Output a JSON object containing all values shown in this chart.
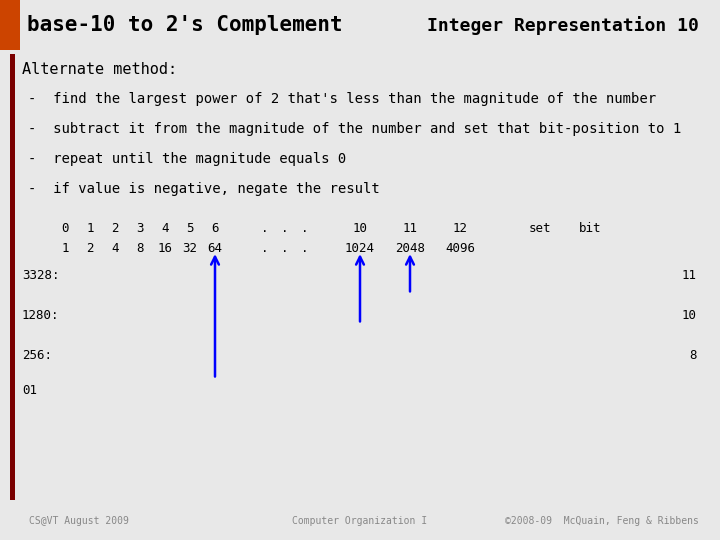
{
  "title_left": "base-10 to 2's Complement",
  "title_right": "Integer Representation 10",
  "bg_color": "#e8e8e8",
  "orange_color": "#cc4400",
  "dark_red_color": "#7a0000",
  "bullet_lines": [
    "find the largest power of 2 that's less than the magnitude of the number",
    "subtract it from the magnitude of the number and set that bit-position to 1",
    "repeat until the magnitude equals 0",
    "if value is negative, negate the result"
  ],
  "footer_left": "CS@VT August 2009",
  "footer_center": "Computer Organization I",
  "footer_right": "©2008-09  McQuain, Feng & Ribbens"
}
